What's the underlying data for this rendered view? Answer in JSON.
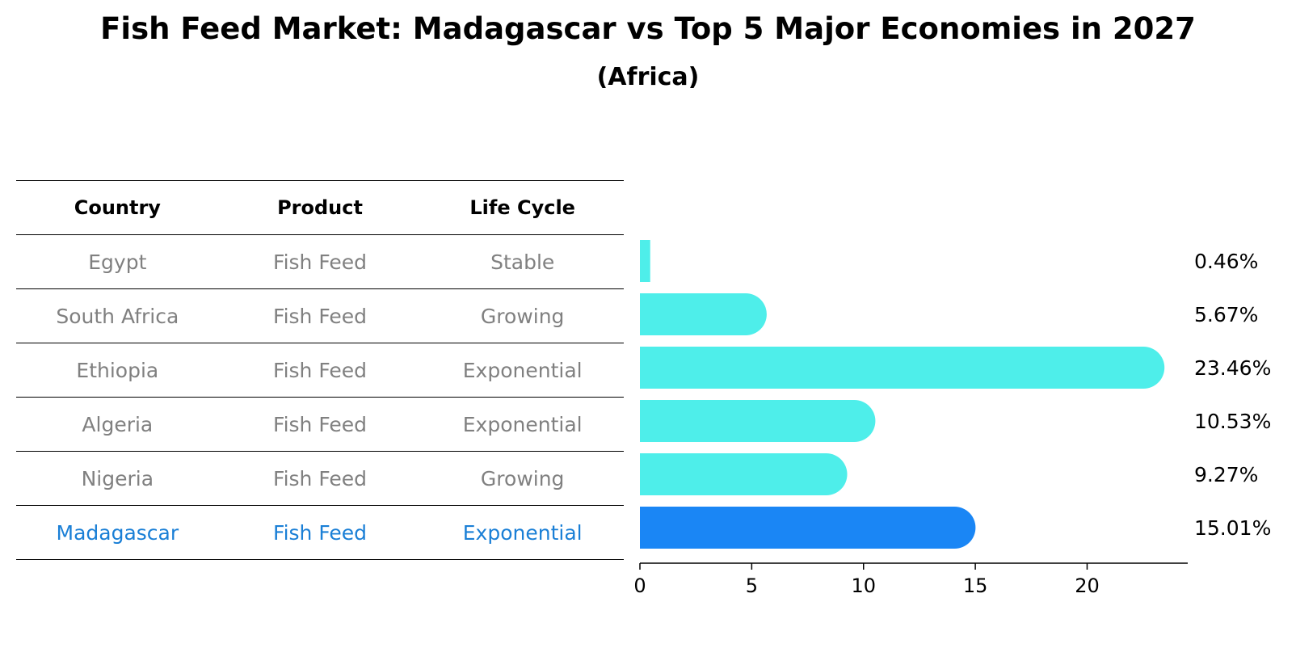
{
  "title": "Fish Feed Market: Madagascar vs Top 5 Major Economies in 2027",
  "subtitle": "(Africa)",
  "table": {
    "headers": [
      "Country",
      "Product",
      "Life Cycle"
    ],
    "rows": [
      {
        "country": "Egypt",
        "product": "Fish Feed",
        "life_cycle": "Stable"
      },
      {
        "country": "South Africa",
        "product": "Fish Feed",
        "life_cycle": "Growing"
      },
      {
        "country": "Ethiopia",
        "product": "Fish Feed",
        "life_cycle": "Exponential"
      },
      {
        "country": "Algeria",
        "product": "Fish Feed",
        "life_cycle": "Exponential"
      },
      {
        "country": "Nigeria",
        "product": "Fish Feed",
        "life_cycle": "Growing"
      },
      {
        "country": "Madagascar",
        "product": "Fish Feed",
        "life_cycle": "Exponential"
      }
    ]
  },
  "colors": {
    "bar": "#4eeeea",
    "highlight_bar": "#1a86f5",
    "highlight_text": "#1a7fd6",
    "muted_text": "#808080"
  },
  "chart_data": {
    "type": "bar",
    "orientation": "horizontal",
    "categories": [
      "Egypt",
      "South Africa",
      "Ethiopia",
      "Algeria",
      "Nigeria",
      "Madagascar"
    ],
    "values": [
      0.46,
      5.67,
      23.46,
      10.53,
      9.27,
      15.01
    ],
    "value_labels": [
      "0.46%",
      "5.67%",
      "23.46%",
      "10.53%",
      "9.27%",
      "15.01%"
    ],
    "highlight": "Madagascar",
    "xlim": [
      0,
      24.5
    ],
    "xticks": [
      0,
      5,
      10,
      15,
      20
    ],
    "xtick_labels": [
      "0",
      "5",
      "10",
      "15",
      "20"
    ]
  }
}
